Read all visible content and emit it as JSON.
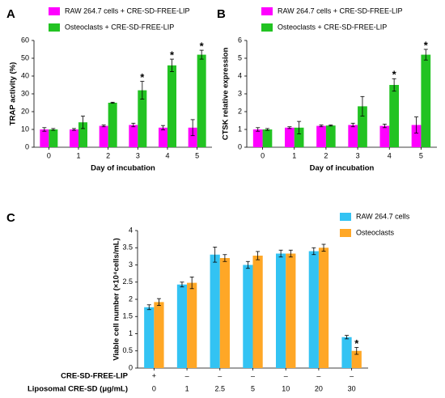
{
  "chart_data": [
    {
      "type": "bar",
      "panel": "A",
      "ylabel": "TRAP activity (%)",
      "xlabel": "Day of incubation",
      "legend": "top",
      "categories": [
        "0",
        "1",
        "2",
        "3",
        "4",
        "5"
      ],
      "ylim": [
        0,
        60
      ],
      "yticks": [
        0,
        10,
        20,
        30,
        40,
        50,
        60
      ],
      "series": [
        {
          "name": "RAW 264.7 cells + CRE-SD-FREE-LIP",
          "color": "#ff00ff",
          "values": [
            10,
            10,
            12,
            12.5,
            11,
            11
          ],
          "errors": [
            1,
            0.5,
            0.5,
            1,
            1.2,
            4.5
          ],
          "stars": [
            null,
            null,
            null,
            null,
            null,
            null
          ]
        },
        {
          "name": "Osteoclasts + CRE-SD-FREE-LIP",
          "color": "#22c322",
          "values": [
            10,
            14,
            25,
            32,
            46,
            52
          ],
          "errors": [
            0.5,
            3.5,
            0.3,
            5,
            3.5,
            2.5
          ],
          "stars": [
            null,
            null,
            null,
            "*",
            "*",
            "*"
          ]
        }
      ]
    },
    {
      "type": "bar",
      "panel": "B",
      "ylabel": "CTSK relative expression",
      "xlabel": "Day of incubation",
      "legend": "top",
      "categories": [
        "0",
        "1",
        "2",
        "3",
        "4",
        "5"
      ],
      "ylim": [
        0,
        6
      ],
      "yticks": [
        0,
        1,
        2,
        3,
        4,
        5,
        6
      ],
      "series": [
        {
          "name": "RAW 264.7 cells + CRE-SD-FREE-LIP",
          "color": "#ff00ff",
          "values": [
            1,
            1.1,
            1.2,
            1.25,
            1.2,
            1.25
          ],
          "errors": [
            0.1,
            0.05,
            0.05,
            0.1,
            0.1,
            0.45
          ],
          "stars": [
            null,
            null,
            null,
            null,
            null,
            null
          ]
        },
        {
          "name": "Osteoclasts + CRE-SD-FREE-LIP",
          "color": "#22c322",
          "values": [
            1,
            1.1,
            1.22,
            2.3,
            3.5,
            5.2
          ],
          "errors": [
            0.05,
            0.35,
            0.03,
            0.55,
            0.35,
            0.3
          ],
          "stars": [
            null,
            null,
            null,
            null,
            "*",
            "*"
          ]
        }
      ]
    },
    {
      "type": "bar",
      "panel": "C",
      "ylabel": "Viable cell number (×10⁴cells/mL)",
      "xlabel": "Liposomal CRE-SD (μg/mL)",
      "legend": "upper right",
      "categories": [
        "0",
        "1",
        "2.5",
        "5",
        "10",
        "20",
        "30"
      ],
      "rows": [
        {
          "label": "CRE-SD-FREE-LIP",
          "values": [
            "+",
            "–",
            "–",
            "–",
            "–",
            "–",
            "–"
          ]
        }
      ],
      "ylim": [
        0,
        4
      ],
      "yticks": [
        0,
        0.5,
        1,
        1.5,
        2,
        2.5,
        3,
        3.5,
        4
      ],
      "series": [
        {
          "name": "RAW 264.7 cells",
          "color": "#33c3f3",
          "values": [
            1.77,
            2.43,
            3.3,
            3.0,
            3.33,
            3.4,
            0.9
          ],
          "errors": [
            0.07,
            0.07,
            0.22,
            0.1,
            0.1,
            0.1,
            0.05
          ],
          "stars": [
            null,
            null,
            null,
            null,
            null,
            null,
            null
          ]
        },
        {
          "name": "Osteoclasts",
          "color": "#ffa726",
          "values": [
            1.92,
            2.48,
            3.2,
            3.27,
            3.33,
            3.5,
            0.5
          ],
          "errors": [
            0.1,
            0.17,
            0.1,
            0.12,
            0.1,
            0.1,
            0.1
          ],
          "stars": [
            null,
            null,
            null,
            null,
            null,
            null,
            "*"
          ]
        }
      ]
    }
  ]
}
